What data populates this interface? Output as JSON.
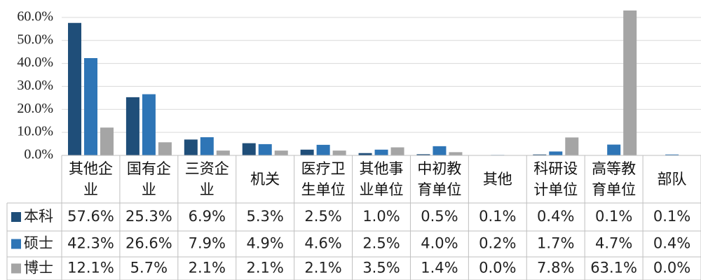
{
  "chart_data": {
    "type": "bar",
    "categories": [
      "其他企业",
      "国有企业",
      "三资企业",
      "机关",
      "医疗卫生单位",
      "其他事业单位",
      "中初教育单位",
      "其他",
      "科研设计单位",
      "高等教育单位",
      "部队"
    ],
    "series": [
      {
        "name": "本科",
        "color": "#1f4e79",
        "values": [
          57.6,
          25.3,
          6.9,
          5.3,
          2.5,
          1.0,
          0.5,
          0.1,
          0.4,
          0.1,
          0.1
        ],
        "value_labels": [
          "57.6%",
          "25.3%",
          "6.9%",
          "5.3%",
          "2.5%",
          "1.0%",
          "0.5%",
          "0.1%",
          "0.4%",
          "0.1%",
          "0.1%"
        ]
      },
      {
        "name": "硕士",
        "color": "#2e75b6",
        "values": [
          42.3,
          26.6,
          7.9,
          4.9,
          4.6,
          2.5,
          4.0,
          0.2,
          1.7,
          4.7,
          0.4
        ],
        "value_labels": [
          "42.3%",
          "26.6%",
          "7.9%",
          "4.9%",
          "4.6%",
          "2.5%",
          "4.0%",
          "0.2%",
          "1.7%",
          "4.7%",
          "0.4%"
        ]
      },
      {
        "name": "博士",
        "color": "#a5a5a5",
        "values": [
          12.1,
          5.7,
          2.1,
          2.1,
          2.1,
          3.5,
          1.4,
          0.0,
          7.8,
          63.1,
          0.0
        ],
        "value_labels": [
          "12.1%",
          "5.7%",
          "2.1%",
          "2.1%",
          "2.1%",
          "3.5%",
          "1.4%",
          "0.0%",
          "7.8%",
          "63.1%",
          "0.0%"
        ]
      }
    ],
    "ylim": [
      0,
      63
    ],
    "yticks": [
      {
        "value": 0,
        "label": "0.0%"
      },
      {
        "value": 10,
        "label": "10.0%"
      },
      {
        "value": 20,
        "label": "20.0%"
      },
      {
        "value": 30,
        "label": "30.0%"
      },
      {
        "value": 40,
        "label": "40.0%"
      },
      {
        "value": 50,
        "label": "50.0%"
      },
      {
        "value": 60,
        "label": "60.0%"
      }
    ],
    "grid": true
  }
}
